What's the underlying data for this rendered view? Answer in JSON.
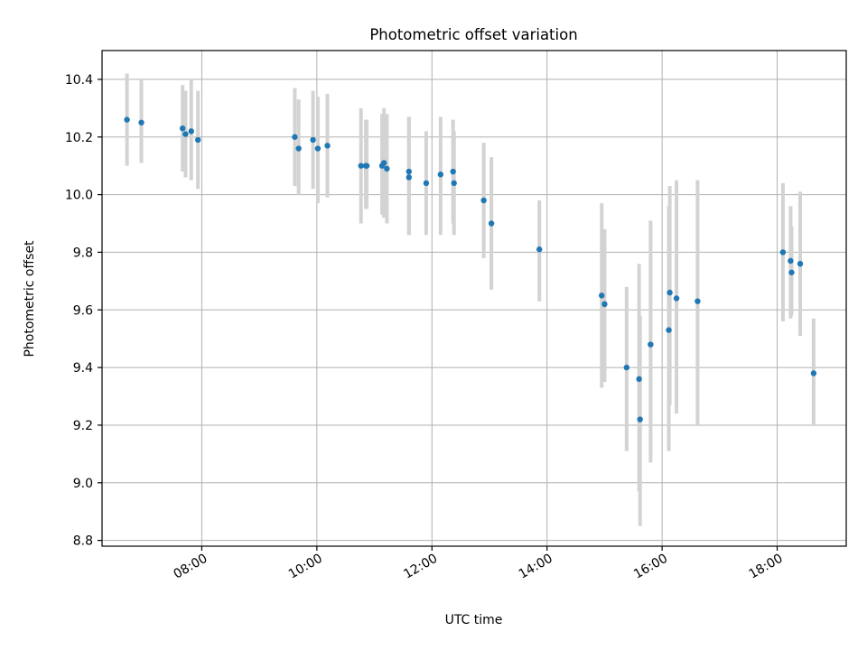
{
  "chart_data": {
    "type": "scatter",
    "title": "Photometric offset variation",
    "xlabel": "UTC time",
    "ylabel": "Photometric offset",
    "x_axis_kind": "time_of_day",
    "xlim": [
      "06:16",
      "19:12"
    ],
    "ylim": [
      8.78,
      10.5
    ],
    "xticks": [
      "08:00",
      "10:00",
      "12:00",
      "14:00",
      "16:00",
      "18:00"
    ],
    "yticks": [
      8.8,
      9.0,
      9.2,
      9.4,
      9.6,
      9.8,
      10.0,
      10.2,
      10.4
    ],
    "ytick_labels": [
      "8.8",
      "9.0",
      "9.2",
      "9.4",
      "9.6",
      "9.8",
      "10.0",
      "10.2",
      "10.4"
    ],
    "grid": true,
    "point_color": "#1f77b4",
    "errorbar_color": "#d3d3d3",
    "series": [
      {
        "x": [
          "06:42",
          "06:57",
          "07:40",
          "07:43",
          "07:49",
          "07:56",
          "09:37",
          "09:41",
          "09:56",
          "10:01",
          "10:11",
          "10:46",
          "10:51",
          "10:52",
          "11:08",
          "11:10",
          "11:13",
          "11:36",
          "11:36",
          "11:54",
          "12:09",
          "12:22",
          "12:23",
          "12:54",
          "13:02",
          "13:52",
          "14:57",
          "15:00",
          "15:23",
          "15:36",
          "15:37",
          "15:48",
          "16:07",
          "16:08",
          "16:15",
          "16:37",
          "18:06",
          "18:14",
          "18:15",
          "18:24",
          "18:38"
        ],
        "y": [
          10.26,
          10.25,
          10.23,
          10.21,
          10.22,
          10.19,
          10.2,
          10.16,
          10.19,
          10.16,
          10.17,
          10.1,
          10.1,
          10.1,
          10.1,
          10.11,
          10.09,
          10.08,
          10.06,
          10.04,
          10.07,
          10.08,
          10.04,
          9.98,
          9.9,
          9.81,
          9.65,
          9.62,
          9.4,
          9.36,
          9.22,
          9.48,
          9.53,
          9.66,
          9.64,
          9.63,
          9.8,
          9.77,
          9.73,
          9.76,
          9.38
        ],
        "yerr_low": [
          10.1,
          10.11,
          10.08,
          10.06,
          10.05,
          10.02,
          10.03,
          10.0,
          10.02,
          9.97,
          9.99,
          9.9,
          9.95,
          9.95,
          9.93,
          9.92,
          9.9,
          9.86,
          9.86,
          9.86,
          9.86,
          9.9,
          9.86,
          9.78,
          9.67,
          9.63,
          9.33,
          9.35,
          9.11,
          8.97,
          8.85,
          9.07,
          9.11,
          9.27,
          9.24,
          9.2,
          9.56,
          9.57,
          9.58,
          9.51,
          9.2
        ],
        "yerr_high": [
          10.42,
          10.4,
          10.38,
          10.36,
          10.4,
          10.36,
          10.37,
          10.33,
          10.36,
          10.34,
          10.35,
          10.3,
          10.26,
          10.26,
          10.28,
          10.3,
          10.28,
          10.27,
          10.27,
          10.22,
          10.27,
          10.26,
          10.22,
          10.18,
          10.13,
          9.98,
          9.97,
          9.88,
          9.68,
          9.76,
          9.58,
          9.91,
          9.96,
          10.03,
          10.05,
          10.05,
          10.04,
          9.96,
          9.89,
          10.01,
          9.57
        ]
      }
    ]
  }
}
